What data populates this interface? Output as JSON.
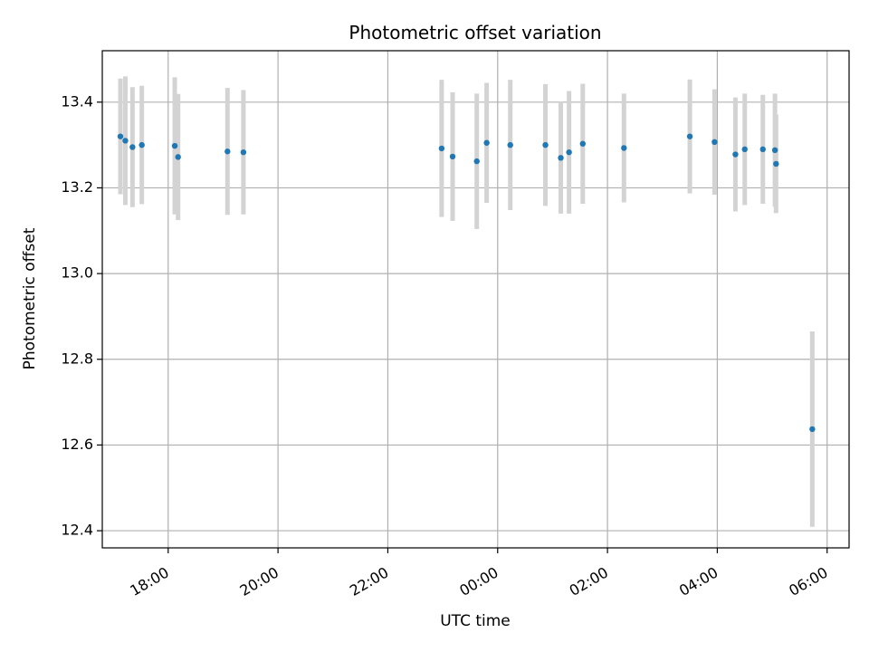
{
  "chart_data": {
    "type": "scatter",
    "title": "Photometric offset variation",
    "xlabel": "UTC time",
    "ylabel": "Photometric offset",
    "x_ticks": [
      "18:00",
      "20:00",
      "22:00",
      "00:00",
      "02:00",
      "04:00",
      "06:00"
    ],
    "x_tick_hours": [
      18,
      20,
      22,
      24,
      26,
      28,
      30
    ],
    "xlim_hours": [
      16.8,
      30.4
    ],
    "ylim": [
      12.36,
      13.52
    ],
    "y_ticks": [
      12.4,
      12.6,
      12.8,
      13.0,
      13.2,
      13.4
    ],
    "grid": true,
    "colors": {
      "points": "#1f77b4",
      "errorbars": "#d3d3d3",
      "grid": "#b0b0b0"
    },
    "series": [
      {
        "x_hours": [
          17.13,
          17.22,
          17.35,
          17.52,
          18.12,
          18.18,
          19.08,
          19.37,
          22.98,
          23.18,
          23.62,
          23.8,
          24.23,
          24.87,
          25.15,
          25.3,
          25.55,
          26.3,
          27.5,
          27.95,
          28.33,
          28.5,
          28.83,
          29.05,
          29.07,
          29.73
        ],
        "y": [
          13.32,
          13.31,
          13.295,
          13.3,
          13.298,
          13.272,
          13.285,
          13.283,
          13.292,
          13.273,
          13.262,
          13.305,
          13.3,
          13.3,
          13.27,
          13.283,
          13.303,
          13.293,
          13.32,
          13.307,
          13.278,
          13.29,
          13.29,
          13.288,
          13.256,
          12.637
        ],
        "yerr": [
          0.135,
          0.15,
          0.14,
          0.138,
          0.16,
          0.147,
          0.148,
          0.145,
          0.16,
          0.15,
          0.158,
          0.14,
          0.152,
          0.142,
          0.13,
          0.143,
          0.14,
          0.127,
          0.133,
          0.123,
          0.133,
          0.13,
          0.127,
          0.132,
          0.115,
          0.228
        ]
      }
    ]
  }
}
